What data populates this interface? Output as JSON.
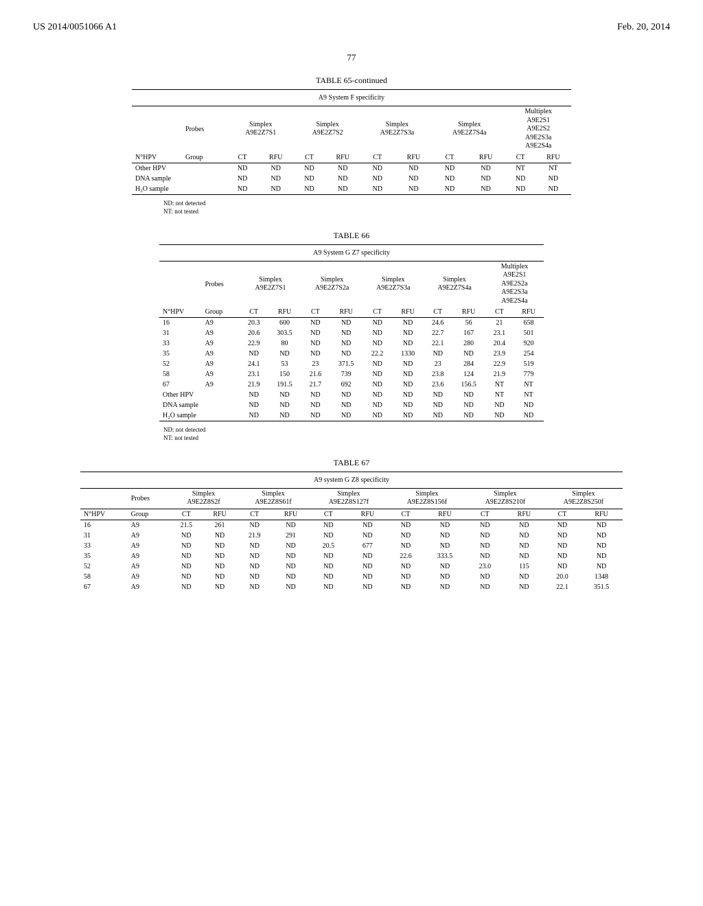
{
  "header": {
    "left": "US 2014/0051066 A1",
    "right": "Feb. 20, 2014"
  },
  "page_number": "77",
  "table65": {
    "title": "TABLE 65-continued",
    "caption": "A9 System F specificity",
    "probes_label": "Probes",
    "group_label": "Group",
    "nhpv_label": "N°HPV",
    "ct_label": "CT",
    "rfu_label": "RFU",
    "columns": [
      {
        "top": "Simplex",
        "bottom": "A9E2Z7S1"
      },
      {
        "top": "Simplex",
        "bottom": "A9E2Z7S2"
      },
      {
        "top": "Simplex",
        "bottom": "A9E2Z7S3a"
      },
      {
        "top": "Simplex",
        "bottom": "A9E2Z7S4a"
      },
      {
        "top": "Multiplex\nA9E2S1\nA9E2S2\nA9E2S3a",
        "bottom": "A9E2S4a"
      }
    ],
    "rows": [
      {
        "label": "Other HPV",
        "cells": [
          "ND",
          "ND",
          "ND",
          "ND",
          "ND",
          "ND",
          "ND",
          "ND",
          "NT",
          "NT"
        ]
      },
      {
        "label": "DNA sample",
        "cells": [
          "ND",
          "ND",
          "ND",
          "ND",
          "ND",
          "ND",
          "ND",
          "ND",
          "ND",
          "ND"
        ]
      },
      {
        "label": "H₂O sample",
        "cells": [
          "ND",
          "ND",
          "ND",
          "ND",
          "ND",
          "ND",
          "ND",
          "ND",
          "ND",
          "ND"
        ]
      }
    ],
    "footnotes": [
      "ND: not detected",
      "NT: not tested"
    ]
  },
  "table66": {
    "title": "TABLE 66",
    "caption": "A9 System G Z7 specificity",
    "probes_label": "Probes",
    "group_label": "Group",
    "nhpv_label": "N°HPV",
    "ct_label": "CT",
    "rfu_label": "RFU",
    "columns": [
      {
        "top": "Simplex",
        "bottom": "A9E2Z7S1"
      },
      {
        "top": "Simplex",
        "bottom": "A9E2Z7S2a"
      },
      {
        "top": "Simplex",
        "bottom": "A9E2Z7S3a"
      },
      {
        "top": "Simplex",
        "bottom": "A9E2Z7S4a"
      },
      {
        "top": "Multiplex\nA9E2S1\nA9E2S2a\nA9E2S3a",
        "bottom": "A9E2S4a"
      }
    ],
    "rows": [
      {
        "nhpv": "16",
        "group": "A9",
        "cells": [
          "20.3",
          "600",
          "ND",
          "ND",
          "ND",
          "ND",
          "24.6",
          "56",
          "21",
          "658"
        ]
      },
      {
        "nhpv": "31",
        "group": "A9",
        "cells": [
          "20.6",
          "303.5",
          "ND",
          "ND",
          "ND",
          "ND",
          "22.7",
          "167",
          "23.1",
          "501"
        ]
      },
      {
        "nhpv": "33",
        "group": "A9",
        "cells": [
          "22.9",
          "80",
          "ND",
          "ND",
          "ND",
          "ND",
          "22.1",
          "280",
          "20.4",
          "920"
        ]
      },
      {
        "nhpv": "35",
        "group": "A9",
        "cells": [
          "ND",
          "ND",
          "ND",
          "ND",
          "22.2",
          "1330",
          "ND",
          "ND",
          "23.9",
          "254"
        ]
      },
      {
        "nhpv": "52",
        "group": "A9",
        "cells": [
          "24.1",
          "53",
          "23",
          "371.5",
          "ND",
          "ND",
          "23",
          "284",
          "22.9",
          "519"
        ]
      },
      {
        "nhpv": "58",
        "group": "A9",
        "cells": [
          "23.1",
          "150",
          "21.6",
          "739",
          "ND",
          "ND",
          "23.8",
          "124",
          "21.9",
          "779"
        ]
      },
      {
        "nhpv": "67",
        "group": "A9",
        "cells": [
          "21.9",
          "191.5",
          "21.7",
          "692",
          "ND",
          "ND",
          "23.6",
          "156.5",
          "NT",
          "NT"
        ]
      },
      {
        "nhpv": "Other HPV",
        "group": "",
        "cells": [
          "ND",
          "ND",
          "ND",
          "ND",
          "ND",
          "ND",
          "ND",
          "ND",
          "NT",
          "NT"
        ]
      },
      {
        "nhpv": "DNA sample",
        "group": "",
        "cells": [
          "ND",
          "ND",
          "ND",
          "ND",
          "ND",
          "ND",
          "ND",
          "ND",
          "ND",
          "ND"
        ]
      },
      {
        "nhpv": "H₂O sample",
        "group": "",
        "cells": [
          "ND",
          "ND",
          "ND",
          "ND",
          "ND",
          "ND",
          "ND",
          "ND",
          "ND",
          "ND"
        ]
      }
    ],
    "footnotes": [
      "ND: not detected",
      "NT: not tested"
    ]
  },
  "table67": {
    "title": "TABLE 67",
    "caption": "A9 system G Z8 specificity",
    "probes_label": "Probes",
    "group_label": "Group",
    "nhpv_label": "N°HPV",
    "ct_label": "CT",
    "rfu_label": "RFU",
    "columns": [
      {
        "top": "Simplex",
        "bottom": "A9E2Z8S2f"
      },
      {
        "top": "Simplex",
        "bottom": "A9E2Z8S61f"
      },
      {
        "top": "Simplex",
        "bottom": "A9E2Z8S127f"
      },
      {
        "top": "Simplex",
        "bottom": "A9E2Z8S156f"
      },
      {
        "top": "Simplex",
        "bottom": "A9E2Z8S210f"
      },
      {
        "top": "Simplex",
        "bottom": "A9E2Z8S250f"
      }
    ],
    "rows": [
      {
        "nhpv": "16",
        "group": "A9",
        "cells": [
          "21.5",
          "261",
          "ND",
          "ND",
          "ND",
          "ND",
          "ND",
          "ND",
          "ND",
          "ND",
          "ND",
          "ND"
        ]
      },
      {
        "nhpv": "31",
        "group": "A9",
        "cells": [
          "ND",
          "ND",
          "21.9",
          "291",
          "ND",
          "ND",
          "ND",
          "ND",
          "ND",
          "ND",
          "ND",
          "ND"
        ]
      },
      {
        "nhpv": "33",
        "group": "A9",
        "cells": [
          "ND",
          "ND",
          "ND",
          "ND",
          "20.5",
          "677",
          "ND",
          "ND",
          "ND",
          "ND",
          "ND",
          "ND"
        ]
      },
      {
        "nhpv": "35",
        "group": "A9",
        "cells": [
          "ND",
          "ND",
          "ND",
          "ND",
          "ND",
          "ND",
          "22.6",
          "333.5",
          "ND",
          "ND",
          "ND",
          "ND"
        ]
      },
      {
        "nhpv": "52",
        "group": "A9",
        "cells": [
          "ND",
          "ND",
          "ND",
          "ND",
          "ND",
          "ND",
          "ND",
          "ND",
          "23.0",
          "115",
          "ND",
          "ND"
        ]
      },
      {
        "nhpv": "58",
        "group": "A9",
        "cells": [
          "ND",
          "ND",
          "ND",
          "ND",
          "ND",
          "ND",
          "ND",
          "ND",
          "ND",
          "ND",
          "20.0",
          "1348"
        ]
      },
      {
        "nhpv": "67",
        "group": "A9",
        "cells": [
          "ND",
          "ND",
          "ND",
          "ND",
          "ND",
          "ND",
          "ND",
          "ND",
          "ND",
          "ND",
          "22.1",
          "351.5"
        ]
      }
    ]
  }
}
